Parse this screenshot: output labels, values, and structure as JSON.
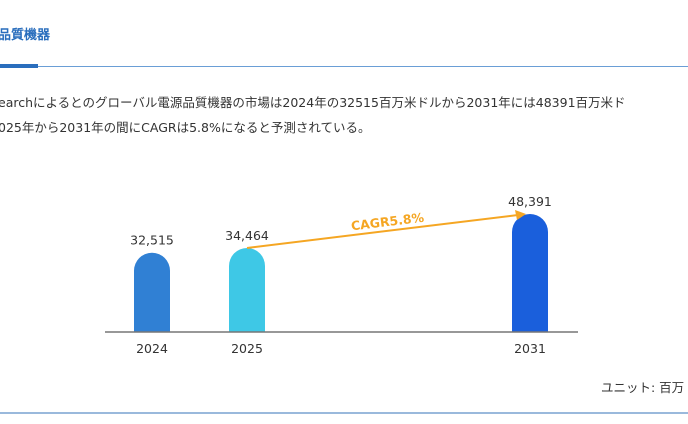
{
  "header": {
    "title": "品質機器"
  },
  "description": {
    "line1": "earchによるとのグローバル電源品質機器の市場は2024年の32515百万米ドルから2031年には48391百万米ド",
    "line2": "025年から2031年の間にCAGRは5.8%になると予測されている。"
  },
  "chart_data": {
    "type": "bar",
    "categories": [
      "2024",
      "2025",
      "2031"
    ],
    "values": [
      32515,
      34464,
      48391
    ],
    "value_labels": [
      "32,515",
      "34,464",
      "48,391"
    ],
    "colors": [
      "#3080d4",
      "#3ec8e6",
      "#1a5fdc"
    ],
    "annotation": {
      "text": "CAGR5.8%",
      "from": "2025",
      "to": "2031",
      "color": "#f5a623"
    },
    "ylim": [
      0,
      48391
    ],
    "unit_label": "ユニット: 百万"
  }
}
